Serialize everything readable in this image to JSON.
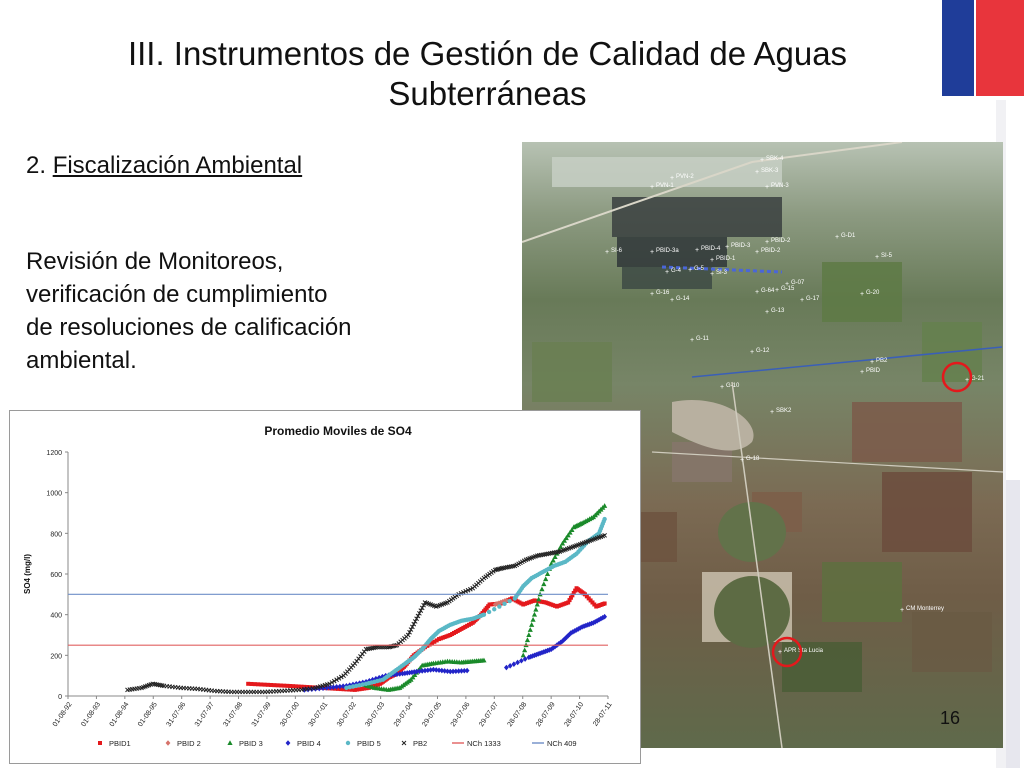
{
  "slide": {
    "title_line1": "III. Instrumentos de Gestión de Calidad de Aguas",
    "title_line2": "Subterráneas",
    "subtitle_number": "2. ",
    "subtitle_text": "Fiscalización Ambiental",
    "paragraph_lines": [
      "Revisión de Monitoreos,",
      "verificación de cumplimiento",
      "de resoluciones de calificación",
      "ambiental."
    ],
    "page_number": "16",
    "flag_colors": {
      "blue": "#1f3d99",
      "red": "#e8353c"
    }
  },
  "chart_data": {
    "type": "scatter",
    "title": "Promedio Moviles de SO4",
    "xlabel": "",
    "ylabel": "SO4 (mg/l)",
    "ylim": [
      0,
      1200
    ],
    "yticks": [
      0,
      200,
      400,
      600,
      800,
      1000,
      1200
    ],
    "xticks": [
      "01-08-92",
      "01-08-93",
      "01-08-94",
      "01-08-95",
      "31-07-96",
      "31-07-97",
      "31-07-98",
      "31-07-99",
      "30-07-00",
      "30-07-01",
      "30-07-02",
      "30-07-03",
      "29-07-04",
      "29-07-05",
      "29-07-06",
      "29-07-07",
      "28-07-08",
      "28-07-09",
      "28-07-10",
      "28-07-11"
    ],
    "xrange": [
      1992.58,
      2011.82
    ],
    "grid": false,
    "legend_position": "bottom",
    "series": [
      {
        "name": "PBID1",
        "color": "#e4191c",
        "marker": "square",
        "points": [
          [
            1999.0,
            60
          ],
          [
            1999.7,
            55
          ],
          [
            2000.4,
            50
          ],
          [
            2001.0,
            45
          ],
          [
            2001.6,
            40
          ],
          [
            2002.2,
            35
          ],
          [
            2002.8,
            30
          ],
          [
            2003.3,
            40
          ],
          [
            2003.7,
            60
          ],
          [
            2004.0,
            90
          ],
          [
            2004.3,
            110
          ],
          [
            2004.6,
            150
          ],
          [
            2004.9,
            200
          ],
          [
            2005.3,
            240
          ],
          [
            2005.8,
            280
          ],
          [
            2006.2,
            300
          ],
          [
            2006.6,
            330
          ],
          [
            2007.0,
            360
          ],
          [
            2007.3,
            400
          ],
          [
            2007.6,
            450
          ],
          [
            2008.0,
            455
          ],
          [
            2008.4,
            480
          ],
          [
            2008.8,
            450
          ],
          [
            2009.2,
            470
          ],
          [
            2009.6,
            460
          ],
          [
            2010.0,
            440
          ],
          [
            2010.4,
            460
          ],
          [
            2010.7,
            530
          ],
          [
            2011.0,
            500
          ],
          [
            2011.4,
            440
          ],
          [
            2011.7,
            455
          ]
        ]
      },
      {
        "name": "PBID 2",
        "color": "#d6726a",
        "marker": "diamond",
        "points": [
          [
            2007.8,
            450
          ],
          [
            2008.2,
            470
          ]
        ]
      },
      {
        "name": "PBID 3",
        "color": "#1a8a2a",
        "marker": "triangle",
        "points": [
          [
            2003.0,
            60
          ],
          [
            2003.5,
            40
          ],
          [
            2004.0,
            30
          ],
          [
            2004.4,
            40
          ],
          [
            2004.8,
            80
          ],
          [
            2005.2,
            150
          ],
          [
            2005.6,
            160
          ],
          [
            2006.1,
            170
          ],
          [
            2006.6,
            165
          ],
          [
            2007.0,
            170
          ],
          [
            2007.4,
            175
          ],
          [
            2008.8,
            200
          ],
          [
            2009.1,
            350
          ],
          [
            2009.4,
            500
          ],
          [
            2009.8,
            650
          ],
          [
            2010.2,
            750
          ],
          [
            2010.6,
            830
          ],
          [
            2010.9,
            850
          ],
          [
            2011.3,
            880
          ],
          [
            2011.7,
            935
          ]
        ]
      },
      {
        "name": "PBID 4",
        "color": "#2224c8",
        "marker": "diamond",
        "points": [
          [
            2001.0,
            30
          ],
          [
            2001.8,
            40
          ],
          [
            2002.5,
            50
          ],
          [
            2003.2,
            70
          ],
          [
            2003.9,
            100
          ],
          [
            2004.5,
            110
          ],
          [
            2005.0,
            120
          ],
          [
            2005.6,
            130
          ],
          [
            2006.2,
            120
          ],
          [
            2006.8,
            125
          ],
          [
            2008.2,
            140
          ],
          [
            2009.0,
            190
          ],
          [
            2009.4,
            210
          ],
          [
            2009.8,
            230
          ],
          [
            2010.2,
            270
          ],
          [
            2010.5,
            310
          ],
          [
            2010.9,
            340
          ],
          [
            2011.3,
            360
          ],
          [
            2011.7,
            390
          ]
        ]
      },
      {
        "name": "PBID 5",
        "color": "#5bb8c6",
        "marker": "circle",
        "points": [
          [
            2002.5,
            40
          ],
          [
            2003.2,
            60
          ],
          [
            2003.8,
            80
          ],
          [
            2004.2,
            120
          ],
          [
            2004.6,
            160
          ],
          [
            2004.9,
            190
          ],
          [
            2005.2,
            230
          ],
          [
            2005.5,
            280
          ],
          [
            2005.8,
            320
          ],
          [
            2006.2,
            350
          ],
          [
            2006.6,
            370
          ],
          [
            2007.0,
            380
          ],
          [
            2007.4,
            400
          ],
          [
            2008.5,
            480
          ],
          [
            2008.8,
            540
          ],
          [
            2009.1,
            580
          ],
          [
            2009.5,
            610
          ],
          [
            2009.9,
            640
          ],
          [
            2010.3,
            660
          ],
          [
            2010.7,
            700
          ],
          [
            2011.1,
            760
          ],
          [
            2011.5,
            800
          ],
          [
            2011.7,
            870
          ]
        ]
      },
      {
        "name": "PB2",
        "color": "#222222",
        "marker": "x",
        "points": [
          [
            1994.7,
            30
          ],
          [
            1995.2,
            40
          ],
          [
            1995.6,
            60
          ],
          [
            1996.0,
            50
          ],
          [
            1996.6,
            40
          ],
          [
            1997.2,
            35
          ],
          [
            1997.8,
            25
          ],
          [
            1998.4,
            20
          ],
          [
            1999.0,
            20
          ],
          [
            1999.6,
            20
          ],
          [
            2000.2,
            25
          ],
          [
            2000.8,
            30
          ],
          [
            2001.4,
            40
          ],
          [
            2001.9,
            60
          ],
          [
            2002.4,
            100
          ],
          [
            2002.8,
            160
          ],
          [
            2003.2,
            230
          ],
          [
            2003.6,
            240
          ],
          [
            2004.0,
            240
          ],
          [
            2004.3,
            250
          ],
          [
            2004.7,
            300
          ],
          [
            2005.0,
            380
          ],
          [
            2005.3,
            460
          ],
          [
            2005.7,
            440
          ],
          [
            2006.1,
            460
          ],
          [
            2006.5,
            500
          ],
          [
            2007.0,
            530
          ],
          [
            2007.4,
            580
          ],
          [
            2007.8,
            620
          ],
          [
            2008.1,
            630
          ],
          [
            2008.5,
            640
          ],
          [
            2008.9,
            670
          ],
          [
            2009.3,
            690
          ],
          [
            2009.7,
            700
          ],
          [
            2010.1,
            710
          ],
          [
            2010.5,
            730
          ],
          [
            2010.9,
            750
          ],
          [
            2011.3,
            770
          ],
          [
            2011.7,
            790
          ]
        ]
      },
      {
        "name": "NCh 1333",
        "color": "#e06060",
        "marker": "line",
        "value": 250
      },
      {
        "name": "NCh 409",
        "color": "#6f8fc8",
        "marker": "line",
        "value": 500
      }
    ]
  },
  "map": {
    "labels": [
      "SBK-4",
      "SBK-3",
      "PVN-2",
      "PVN-1",
      "PVN-3",
      "SI-6",
      "PBID-3a",
      "PBID-4",
      "PBID-3",
      "PBID-2",
      "PBID-1",
      "PBID-2",
      "G-D1",
      "SI-5",
      "G-4",
      "G-5",
      "SI-3",
      "G-16",
      "G-64",
      "G-15",
      "G-07",
      "G-14",
      "G-13",
      "G-17",
      "G-20",
      "G-11",
      "G-12",
      "PB2",
      "PBID",
      "G-10",
      "SBK2",
      "G-18",
      "APR Sta Lucia",
      "G-21",
      "CM Monterrey"
    ]
  }
}
